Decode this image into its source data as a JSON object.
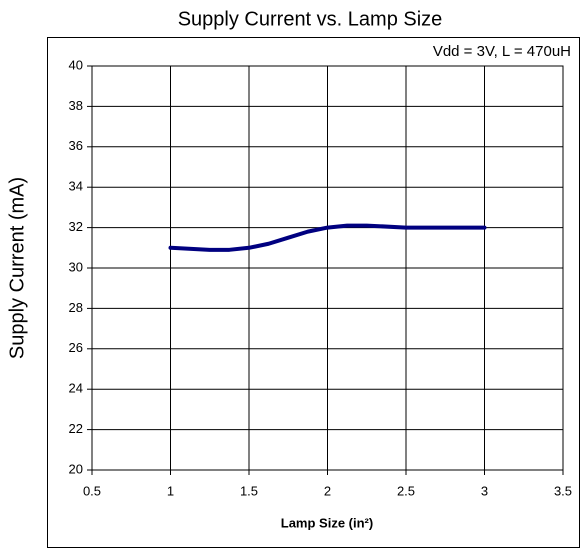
{
  "chart_data": {
    "type": "line",
    "title": "Supply Current vs. Lamp Size",
    "annotation": "Vdd = 3V, L = 470uH",
    "x_label": "Lamp Size (in²)",
    "y_label": "Supply Current (mA)",
    "x": [
      1,
      1.25,
      1.375,
      1.5,
      1.625,
      1.75,
      1.875,
      2,
      2.125,
      2.25,
      2.5,
      3
    ],
    "series": [
      {
        "name": "Supply Current",
        "color": "#000080",
        "values": [
          31,
          30.9,
          30.9,
          31,
          31.2,
          31.5,
          31.8,
          32,
          32.1,
          32.1,
          32,
          32
        ]
      }
    ],
    "xlim": [
      0.5,
      3.5
    ],
    "xticks": [
      0.5,
      1,
      1.5,
      2,
      2.5,
      3,
      3.5
    ],
    "ylim": [
      20,
      40
    ],
    "yticks": [
      20,
      22,
      24,
      26,
      28,
      30,
      32,
      34,
      36,
      38,
      40
    ],
    "grid": true
  }
}
